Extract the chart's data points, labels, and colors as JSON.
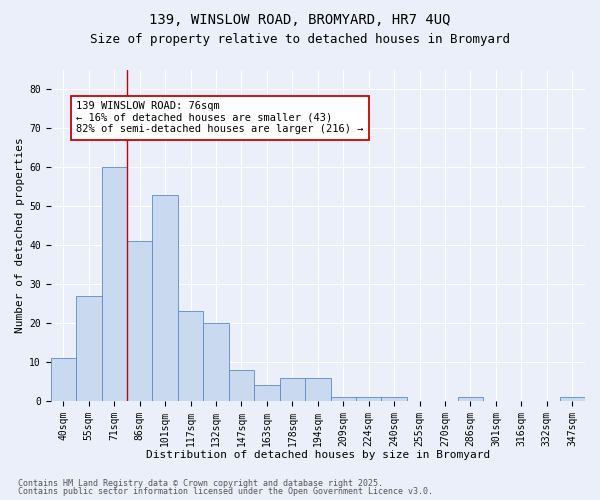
{
  "title1": "139, WINSLOW ROAD, BROMYARD, HR7 4UQ",
  "title2": "Size of property relative to detached houses in Bromyard",
  "xlabel": "Distribution of detached houses by size in Bromyard",
  "ylabel": "Number of detached properties",
  "categories": [
    "40sqm",
    "55sqm",
    "71sqm",
    "86sqm",
    "101sqm",
    "117sqm",
    "132sqm",
    "147sqm",
    "163sqm",
    "178sqm",
    "194sqm",
    "209sqm",
    "224sqm",
    "240sqm",
    "255sqm",
    "270sqm",
    "286sqm",
    "301sqm",
    "316sqm",
    "332sqm",
    "347sqm"
  ],
  "values": [
    11,
    27,
    60,
    41,
    53,
    23,
    20,
    8,
    4,
    6,
    6,
    1,
    1,
    1,
    0,
    0,
    1,
    0,
    0,
    0,
    1
  ],
  "bar_color": "#c8d9f0",
  "bar_edge_color": "#5b8ac8",
  "ylim": [
    0,
    85
  ],
  "yticks": [
    0,
    10,
    20,
    30,
    40,
    50,
    60,
    70,
    80
  ],
  "annotation_text": "139 WINSLOW ROAD: 76sqm\n← 16% of detached houses are smaller (43)\n82% of semi-detached houses are larger (216) →",
  "annotation_box_color": "#ffffff",
  "annotation_box_edge": "#cc0000",
  "red_line_x": 2.5,
  "footnote1": "Contains HM Land Registry data © Crown copyright and database right 2025.",
  "footnote2": "Contains public sector information licensed under the Open Government Licence v3.0.",
  "bg_color": "#eaeffa",
  "plot_bg_color": "#eaeffa",
  "grid_color": "#ffffff",
  "title_fontsize": 10,
  "title2_fontsize": 9,
  "axis_label_fontsize": 8,
  "tick_fontsize": 7,
  "annotation_fontsize": 7.5,
  "footnote_fontsize": 6
}
